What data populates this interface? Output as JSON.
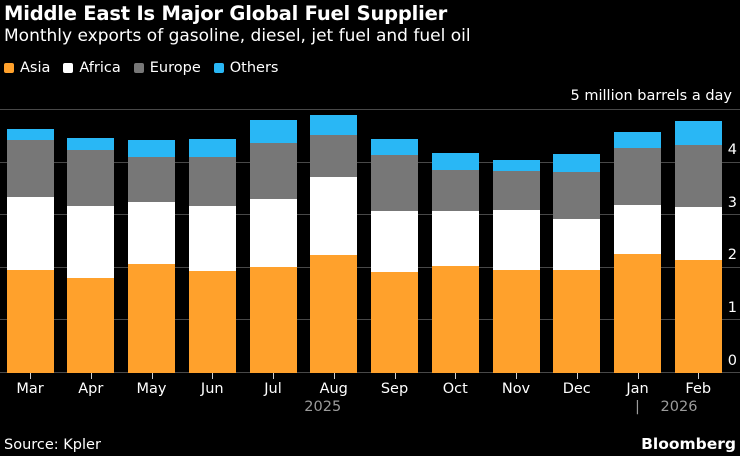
{
  "header": {
    "title": "Middle East Is Major Global Fuel Supplier",
    "subtitle": "Monthly exports of gasoline, diesel, jet fuel and fuel oil"
  },
  "legend": [
    {
      "label": "Asia",
      "color": "#FFA12C"
    },
    {
      "label": "Africa",
      "color": "#FFFFFF"
    },
    {
      "label": "Europe",
      "color": "#777777"
    },
    {
      "label": "Others",
      "color": "#29B7F5"
    }
  ],
  "chart_data": {
    "type": "bar",
    "stacked": true,
    "title": "Middle East Is Major Global Fuel Supplier",
    "subtitle": "Monthly exports of gasoline, diesel, jet fuel and fuel oil",
    "unit_label": "5 million barrels a day",
    "categories": [
      "Mar",
      "Apr",
      "May",
      "Jun",
      "Jul",
      "Aug",
      "Sep",
      "Oct",
      "Nov",
      "Dec",
      "Jan",
      "Feb"
    ],
    "series": [
      {
        "name": "Asia",
        "color": "#FFA12C",
        "values": [
          1.96,
          1.8,
          2.08,
          1.94,
          2.02,
          2.25,
          1.93,
          2.04,
          1.96,
          1.96,
          2.27,
          2.15
        ]
      },
      {
        "name": "Africa",
        "color": "#FFFFFF",
        "values": [
          1.39,
          1.38,
          1.18,
          1.23,
          1.3,
          1.48,
          1.16,
          1.05,
          1.14,
          0.97,
          0.93,
          1.0
        ]
      },
      {
        "name": "Europe",
        "color": "#777777",
        "values": [
          1.08,
          1.06,
          0.86,
          0.94,
          1.05,
          0.8,
          1.05,
          0.77,
          0.74,
          0.89,
          1.09,
          1.19
        ]
      },
      {
        "name": "Others",
        "color": "#29B7F5",
        "values": [
          0.21,
          0.24,
          0.32,
          0.35,
          0.45,
          0.38,
          0.31,
          0.32,
          0.22,
          0.34,
          0.29,
          0.45
        ]
      }
    ],
    "ylim": [
      0,
      5
    ],
    "ytick_labels": [
      "0",
      "1",
      "2",
      "3",
      "4"
    ],
    "grid": true,
    "legend_position": "top-left",
    "year_labels": [
      {
        "text": "2025",
        "anchor_index": 5
      },
      {
        "text": "2026",
        "anchor_index": 10
      }
    ],
    "year_divider": "|"
  },
  "footer": {
    "source": "Source: Kpler",
    "brand": "Bloomberg"
  }
}
